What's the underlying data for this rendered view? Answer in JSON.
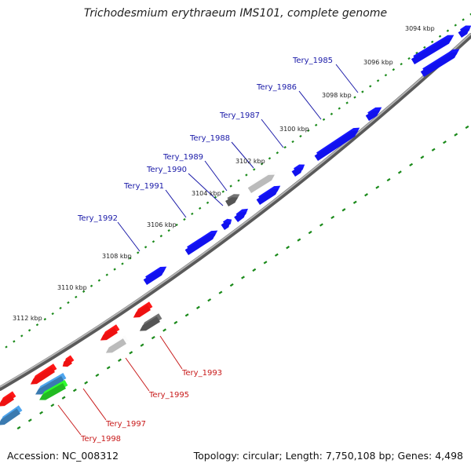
{
  "title": "Trichodesmium erythraeum IMS101, complete genome",
  "footer": {
    "accession": "Accession: NC_008312",
    "summary": "Topology: circular; Length: 7,750,108 bp; Genes: 4,498"
  },
  "colors": {
    "backbone": "#8a8a8a",
    "tick_dots": "#1a8a1a",
    "forward_gene": "#1111ee",
    "reverse_gene": "#ee1111",
    "gray_gene": "#555555",
    "light_gray_gene": "#bbbbbb",
    "steel_gene": "#3a7ab0",
    "green_gene": "#22bb22",
    "forward_label": "#1a1aa8",
    "reverse_label": "#c81a1a"
  },
  "scale_ticks": [
    {
      "label": "3094 kbp"
    },
    {
      "label": "3096 kbp"
    },
    {
      "label": "3098 kbp"
    },
    {
      "label": "3100 kbp"
    },
    {
      "label": "3102 kbp"
    },
    {
      "label": "3104 kbp"
    },
    {
      "label": "3106 kbp"
    },
    {
      "label": "3108 kbp"
    },
    {
      "label": "3110 kbp"
    },
    {
      "label": "3112 kbp"
    }
  ],
  "genes_forward": [
    {
      "name": "Tery_1985"
    },
    {
      "name": "Tery_1986"
    },
    {
      "name": "Tery_1987"
    },
    {
      "name": "Tery_1988"
    },
    {
      "name": "Tery_1989"
    },
    {
      "name": "Tery_1990"
    },
    {
      "name": "Tery_1991"
    },
    {
      "name": "Tery_1992"
    }
  ],
  "genes_reverse": [
    {
      "name": "Tery_1993"
    },
    {
      "name": "Tery_1995"
    },
    {
      "name": "Tery_1997"
    },
    {
      "name": "Tery_1998"
    }
  ]
}
